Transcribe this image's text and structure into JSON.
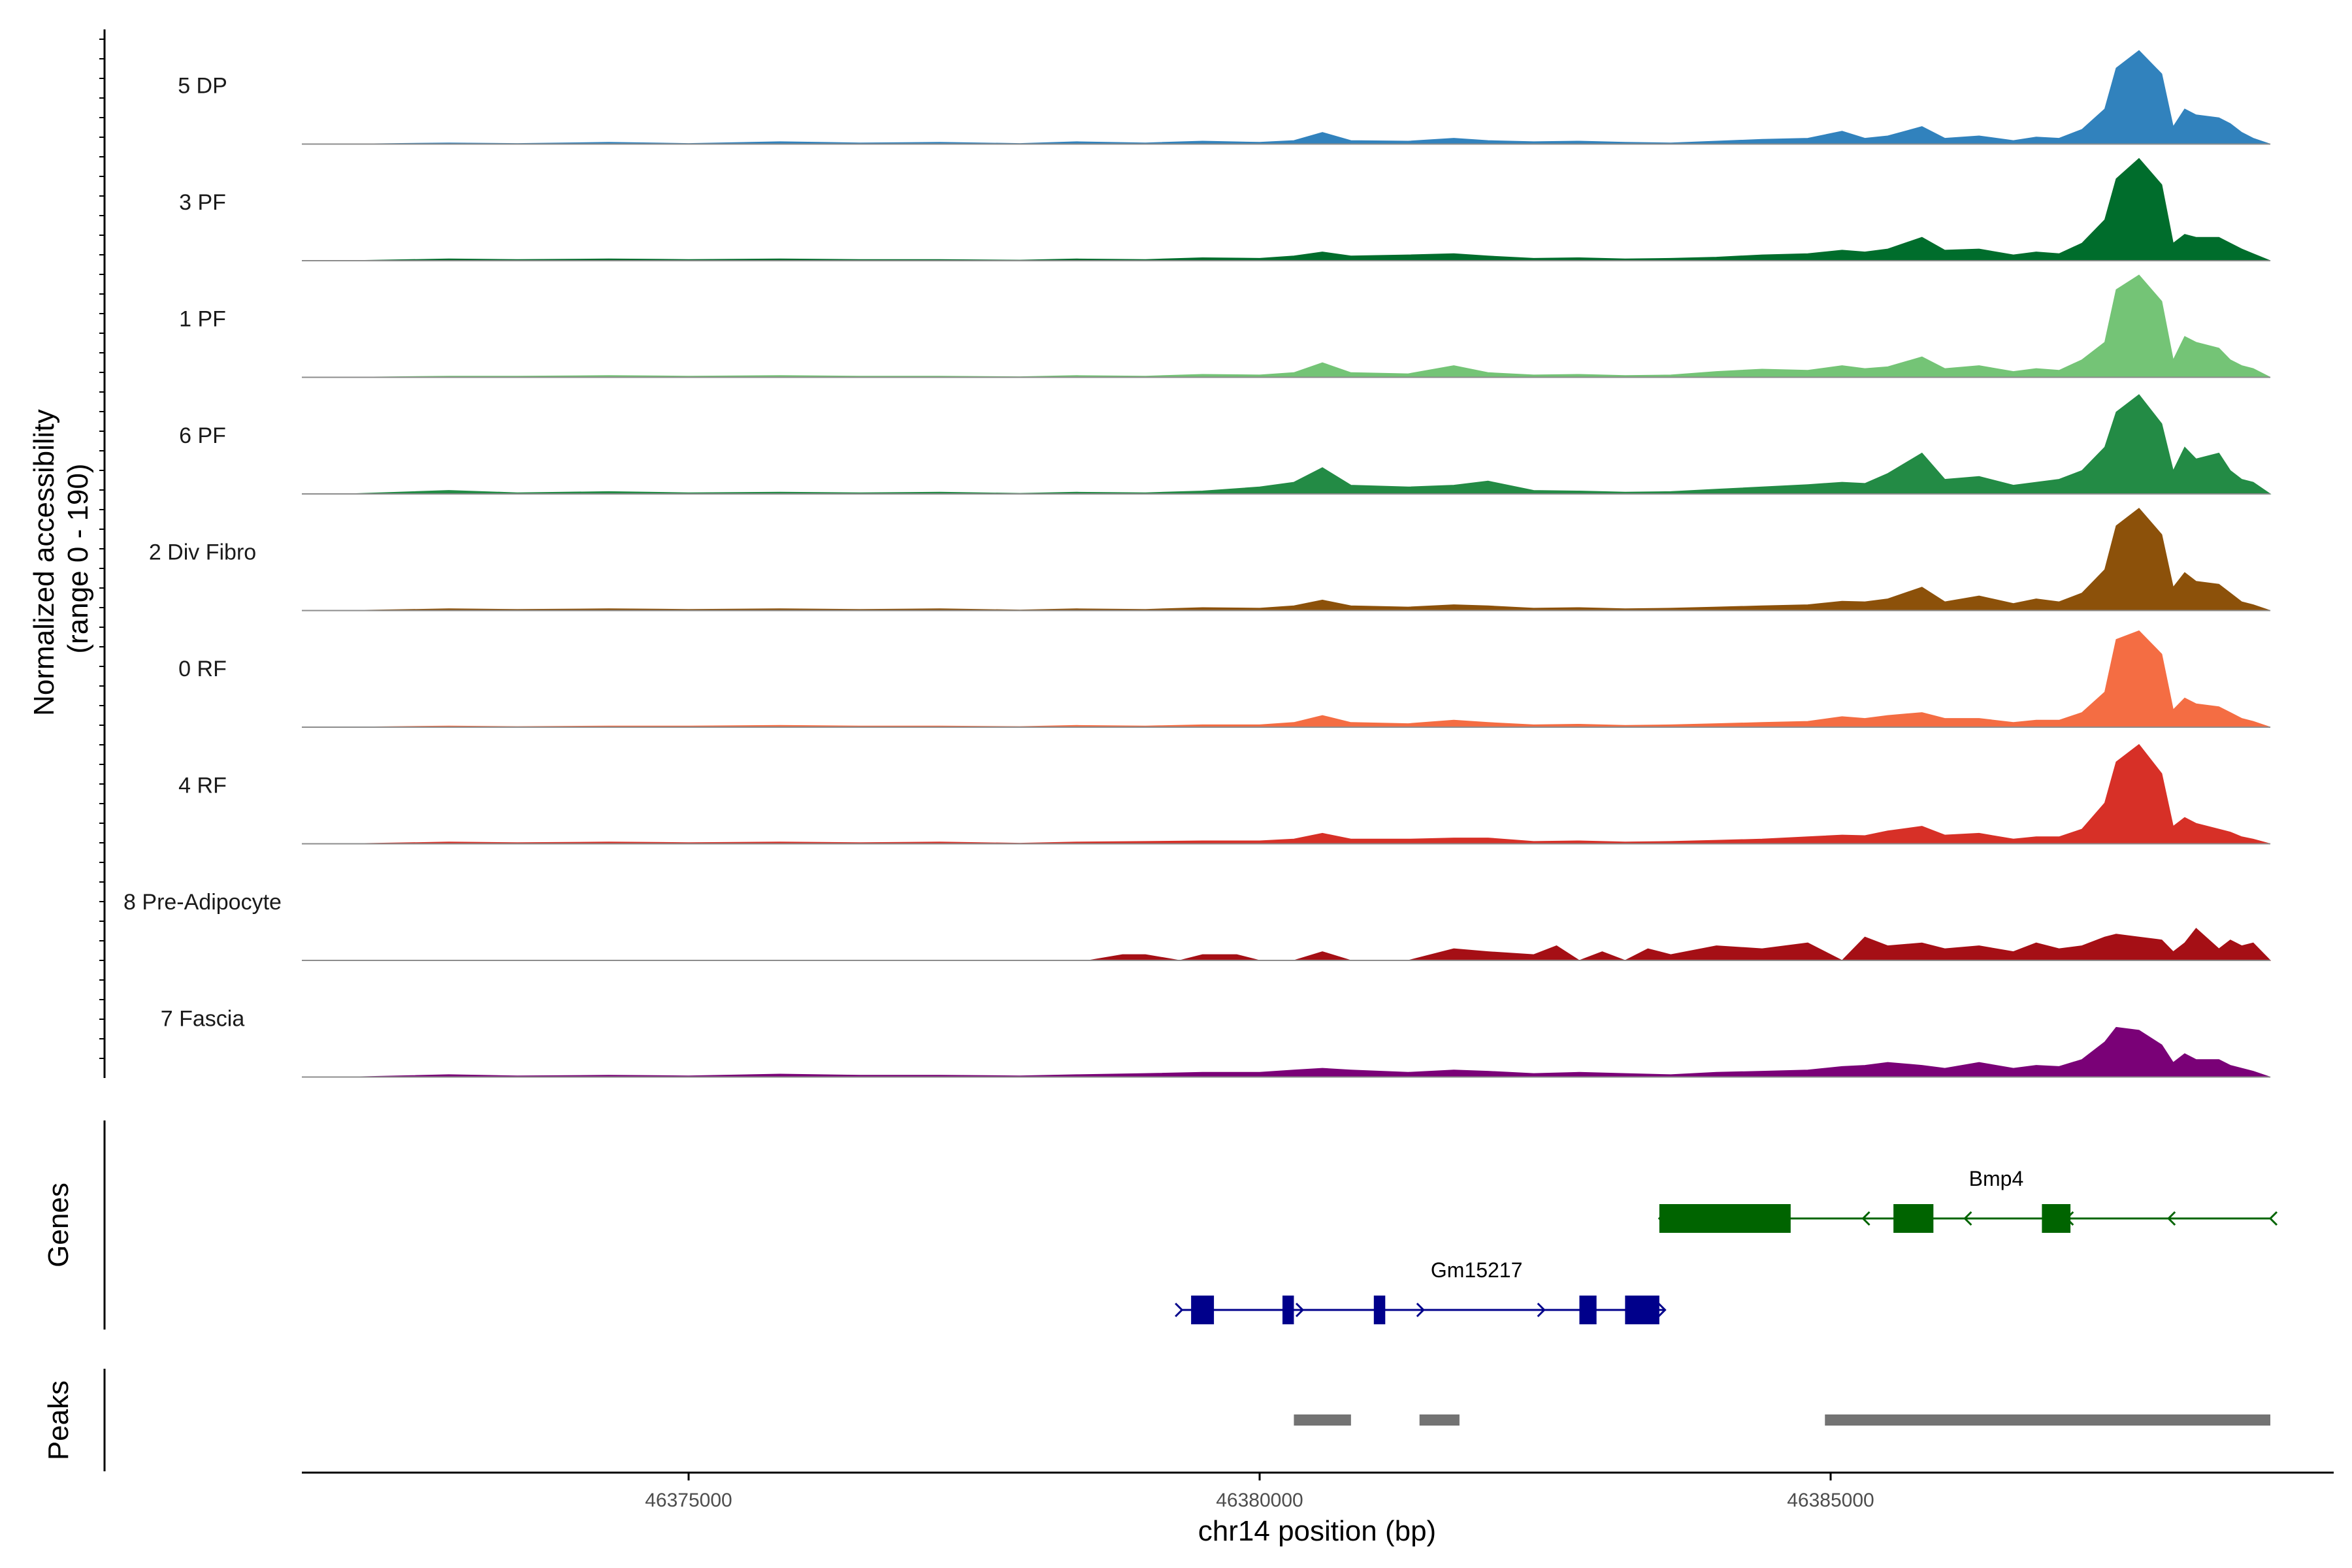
{
  "chart_data": [
    {
      "type": "area",
      "ylabel_line1": "Normalized accessibility",
      "ylabel_line2": "(range 0 - 190)",
      "ylim": [
        0,
        190
      ],
      "xlim": [
        46371800,
        46388850
      ],
      "tracks": [
        {
          "name": "5 DP",
          "color": "#3182bd",
          "x": [
            46372000,
            46372900,
            46373500,
            46374300,
            46375000,
            46375800,
            46376500,
            46377200,
            46377900,
            46378400,
            46379000,
            46379500,
            46380000,
            46380300,
            46380550,
            46380800,
            46381300,
            46381700,
            46382000,
            46382400,
            46382800,
            46383200,
            46383600,
            46384000,
            46384400,
            46384800,
            46385100,
            46385300,
            46385500,
            46385800,
            46386000,
            46386300,
            46386600,
            46386800,
            46387000,
            46387200,
            46387400,
            46387500,
            46387700,
            46387900,
            46388000,
            46388100,
            46388200,
            46388400,
            46388500,
            46388600,
            46388700,
            46388850
          ],
          "y": [
            0,
            2,
            1,
            3,
            1,
            4,
            2,
            3,
            1,
            4,
            2,
            5,
            3,
            6,
            20,
            6,
            5,
            10,
            6,
            4,
            5,
            3,
            2,
            5,
            8,
            10,
            22,
            10,
            14,
            30,
            10,
            14,
            6,
            12,
            10,
            25,
            60,
            130,
            160,
            120,
            30,
            60,
            50,
            45,
            35,
            20,
            10,
            0
          ]
        },
        {
          "name": "3 PF",
          "color": "#006d2c",
          "x": [
            46372000,
            46372900,
            46373500,
            46374300,
            46375000,
            46375800,
            46376500,
            46377200,
            46377900,
            46378400,
            46379000,
            46379500,
            46380000,
            46380300,
            46380550,
            46380800,
            46381300,
            46381700,
            46382000,
            46382400,
            46382800,
            46383200,
            46383600,
            46384000,
            46384400,
            46384800,
            46385100,
            46385300,
            46385500,
            46385800,
            46386000,
            46386300,
            46386600,
            46386800,
            46387000,
            46387200,
            46387400,
            46387500,
            46387700,
            46387900,
            46388000,
            46388100,
            46388200,
            46388400,
            46388500,
            46388600,
            46388700,
            46388850
          ],
          "y": [
            0,
            3,
            2,
            3,
            2,
            3,
            2,
            2,
            1,
            3,
            2,
            5,
            4,
            8,
            15,
            8,
            10,
            12,
            8,
            4,
            5,
            3,
            4,
            6,
            10,
            12,
            18,
            15,
            20,
            40,
            18,
            20,
            10,
            15,
            12,
            30,
            70,
            140,
            175,
            130,
            30,
            45,
            40,
            40,
            30,
            20,
            12,
            0
          ]
        },
        {
          "name": "1 PF",
          "color": "#74c476",
          "x": [
            46372000,
            46372900,
            46373500,
            46374300,
            46375000,
            46375800,
            46376500,
            46377200,
            46377900,
            46378400,
            46379000,
            46379500,
            46380000,
            46380300,
            46380550,
            46380800,
            46381300,
            46381700,
            46382000,
            46382400,
            46382800,
            46383200,
            46383600,
            46384000,
            46384400,
            46384800,
            46385100,
            46385300,
            46385500,
            46385800,
            46386000,
            46386300,
            46386600,
            46386800,
            46387000,
            46387200,
            46387400,
            46387500,
            46387700,
            46387900,
            46388000,
            46388100,
            46388200,
            46388400,
            46388500,
            46388600,
            46388700,
            46388850
          ],
          "y": [
            0,
            2,
            2,
            3,
            2,
            3,
            2,
            2,
            1,
            3,
            2,
            5,
            4,
            8,
            25,
            8,
            6,
            20,
            8,
            4,
            5,
            3,
            4,
            10,
            14,
            12,
            20,
            15,
            18,
            35,
            15,
            20,
            10,
            15,
            12,
            30,
            60,
            150,
            175,
            130,
            30,
            70,
            60,
            50,
            30,
            20,
            15,
            0
          ]
        },
        {
          "name": "6 PF",
          "color": "#238b45",
          "x": [
            46372000,
            46372900,
            46373500,
            46374300,
            46375000,
            46375800,
            46376500,
            46377200,
            46377900,
            46378400,
            46379000,
            46379500,
            46380000,
            46380300,
            46380550,
            46380800,
            46381300,
            46381700,
            46382000,
            46382400,
            46382800,
            46383200,
            46383600,
            46384000,
            46384400,
            46384800,
            46385100,
            46385300,
            46385500,
            46385800,
            46386000,
            46386300,
            46386600,
            46386800,
            46387000,
            46387200,
            46387400,
            46387500,
            46387700,
            46387900,
            46388000,
            46388100,
            46388200,
            46388400,
            46388500,
            46388600,
            46388700,
            46388850
          ],
          "y": [
            0,
            6,
            2,
            4,
            2,
            3,
            2,
            3,
            1,
            3,
            2,
            5,
            12,
            20,
            45,
            15,
            12,
            15,
            22,
            6,
            5,
            3,
            4,
            8,
            12,
            16,
            20,
            18,
            35,
            70,
            25,
            30,
            15,
            20,
            25,
            40,
            80,
            140,
            170,
            120,
            40,
            80,
            60,
            70,
            40,
            25,
            20,
            0
          ]
        },
        {
          "name": "2 Div Fibro",
          "color": "#8c510a",
          "x": [
            46372000,
            46372900,
            46373500,
            46374300,
            46375000,
            46375800,
            46376500,
            46377200,
            46377900,
            46378400,
            46379000,
            46379500,
            46380000,
            46380300,
            46380550,
            46380800,
            46381300,
            46381700,
            46382000,
            46382400,
            46382800,
            46383200,
            46383600,
            46384000,
            46384400,
            46384800,
            46385100,
            46385300,
            46385500,
            46385800,
            46386000,
            46386300,
            46386600,
            46386800,
            46387000,
            46387200,
            46387400,
            46387500,
            46387700,
            46387900,
            46388000,
            46388100,
            46388200,
            46388400,
            46388500,
            46388600,
            46388700,
            46388850
          ],
          "y": [
            0,
            3,
            2,
            3,
            2,
            3,
            2,
            3,
            1,
            3,
            2,
            5,
            4,
            8,
            18,
            8,
            6,
            10,
            8,
            4,
            5,
            3,
            4,
            6,
            8,
            10,
            16,
            15,
            20,
            40,
            15,
            25,
            12,
            20,
            15,
            30,
            70,
            145,
            175,
            130,
            40,
            65,
            50,
            45,
            30,
            15,
            10,
            0
          ]
        },
        {
          "name": "0 RF",
          "color": "#f46d43",
          "x": [
            46372000,
            46372900,
            46373500,
            46374300,
            46375000,
            46375800,
            46376500,
            46377200,
            46377900,
            46378400,
            46379000,
            46379500,
            46380000,
            46380300,
            46380550,
            46380800,
            46381300,
            46381700,
            46382000,
            46382400,
            46382800,
            46383200,
            46383600,
            46384000,
            46384400,
            46384800,
            46385100,
            46385300,
            46385500,
            46385800,
            46386000,
            46386300,
            46386600,
            46386800,
            46387000,
            46387200,
            46387400,
            46387500,
            46387700,
            46387900,
            46388000,
            46388100,
            46388200,
            46388400,
            46388500,
            46388600,
            46388700,
            46388850
          ],
          "y": [
            0,
            2,
            1,
            2,
            2,
            3,
            2,
            2,
            1,
            3,
            2,
            4,
            4,
            8,
            20,
            8,
            6,
            12,
            8,
            4,
            5,
            3,
            4,
            6,
            8,
            10,
            18,
            15,
            20,
            25,
            15,
            15,
            8,
            12,
            12,
            25,
            60,
            150,
            165,
            125,
            30,
            50,
            40,
            35,
            25,
            15,
            10,
            0
          ]
        },
        {
          "name": "4 RF",
          "color": "#d73027",
          "x": [
            46372000,
            46372900,
            46373500,
            46374300,
            46375000,
            46375800,
            46376500,
            46377200,
            46377900,
            46378400,
            46379000,
            46379500,
            46380000,
            46380300,
            46380550,
            46380800,
            46381300,
            46381700,
            46382000,
            46382400,
            46382800,
            46383200,
            46383600,
            46384000,
            46384400,
            46384800,
            46385100,
            46385300,
            46385500,
            46385800,
            46386000,
            46386300,
            46386600,
            46386800,
            46387000,
            46387200,
            46387400,
            46387500,
            46387700,
            46387900,
            46388000,
            46388100,
            46388200,
            46388400,
            46388500,
            46388600,
            46388700,
            46388850
          ],
          "y": [
            0,
            3,
            2,
            3,
            2,
            3,
            2,
            3,
            1,
            3,
            4,
            5,
            5,
            8,
            18,
            8,
            8,
            10,
            10,
            4,
            5,
            3,
            4,
            6,
            8,
            12,
            15,
            14,
            22,
            30,
            15,
            18,
            8,
            12,
            12,
            25,
            70,
            140,
            170,
            120,
            30,
            45,
            35,
            25,
            20,
            12,
            8,
            0
          ]
        },
        {
          "name": "8 Pre-Adipocyte",
          "color": "#a50f15",
          "x": [
            46378300,
            46378500,
            46378800,
            46379000,
            46379300,
            46379500,
            46379800,
            46380000,
            46380300,
            46380550,
            46380800,
            46381300,
            46381700,
            46382000,
            46382400,
            46382600,
            46382800,
            46383000,
            46383200,
            46383400,
            46383600,
            46384000,
            46384400,
            46384800,
            46385100,
            46385300,
            46385500,
            46385800,
            46386000,
            46386300,
            46386600,
            46386800,
            46387000,
            46387200,
            46387400,
            46387500,
            46387700,
            46387900,
            46388000,
            46388100,
            46388200,
            46388400,
            46388500,
            46388600,
            46388700,
            46388850
          ],
          "y": [
            0,
            0,
            10,
            10,
            0,
            10,
            10,
            0,
            0,
            15,
            0,
            0,
            20,
            15,
            10,
            25,
            0,
            15,
            0,
            20,
            10,
            25,
            20,
            30,
            0,
            40,
            25,
            30,
            20,
            25,
            15,
            30,
            20,
            25,
            40,
            45,
            40,
            35,
            15,
            30,
            55,
            20,
            35,
            25,
            30,
            0
          ]
        },
        {
          "name": "7 Fascia",
          "color": "#7a0177",
          "x": [
            46372000,
            46372900,
            46373500,
            46374300,
            46375000,
            46375800,
            46376500,
            46377200,
            46377900,
            46378400,
            46379000,
            46379500,
            46380000,
            46380300,
            46380550,
            46380800,
            46381300,
            46381700,
            46382000,
            46382400,
            46382800,
            46383200,
            46383600,
            46384000,
            46384400,
            46384800,
            46385100,
            46385300,
            46385500,
            46385800,
            46386000,
            46386300,
            46386600,
            46386800,
            46387000,
            46387200,
            46387400,
            46387500,
            46387700,
            46387900,
            46388000,
            46388100,
            46388200,
            46388400,
            46388500,
            46388600,
            46388700,
            46388850
          ],
          "y": [
            0,
            4,
            2,
            3,
            2,
            5,
            3,
            3,
            2,
            4,
            6,
            8,
            8,
            12,
            15,
            12,
            8,
            12,
            10,
            6,
            8,
            6,
            4,
            8,
            10,
            12,
            18,
            20,
            25,
            20,
            15,
            25,
            15,
            20,
            18,
            30,
            60,
            85,
            80,
            55,
            25,
            40,
            30,
            30,
            20,
            15,
            10,
            0
          ]
        }
      ]
    },
    {
      "type": "gene-track",
      "ylabel": "Genes",
      "genes": [
        {
          "name": "Bmp4",
          "strand": "-",
          "color": "#006400",
          "start": 46383500,
          "end": 46388850,
          "exons": [
            [
              46383500,
              46384650
            ],
            [
              46385550,
              46385900
            ],
            [
              46386850,
              46387100
            ]
          ]
        },
        {
          "name": "Gm15217",
          "strand": "+",
          "color": "#00008b",
          "start": 46379320,
          "end": 46383550,
          "exons": [
            [
              46379400,
              46379600
            ],
            [
              46380200,
              46380300
            ],
            [
              46381000,
              46381100
            ],
            [
              46382800,
              46382950
            ],
            [
              46383200,
              46383500
            ]
          ]
        }
      ]
    },
    {
      "type": "peak-track",
      "ylabel": "Peaks",
      "color": "#737373",
      "peaks": [
        [
          46380300,
          46380800
        ],
        [
          46381400,
          46381750
        ],
        [
          46384950,
          46388850
        ]
      ]
    }
  ],
  "x_axis": {
    "title": "chr14 position (bp)",
    "ticks": [
      46375000,
      46380000,
      46385000
    ],
    "tick_labels": [
      "46375000",
      "46380000",
      "46385000"
    ]
  }
}
